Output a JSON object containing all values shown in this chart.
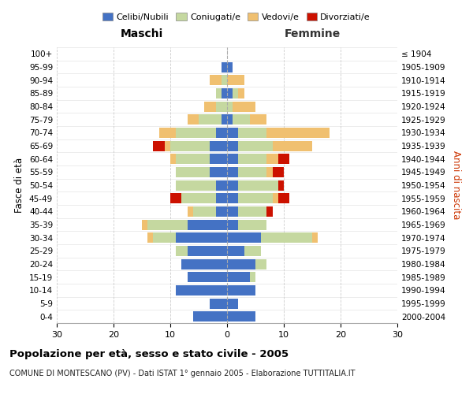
{
  "age_groups": [
    "0-4",
    "5-9",
    "10-14",
    "15-19",
    "20-24",
    "25-29",
    "30-34",
    "35-39",
    "40-44",
    "45-49",
    "50-54",
    "55-59",
    "60-64",
    "65-69",
    "70-74",
    "75-79",
    "80-84",
    "85-89",
    "90-94",
    "95-99",
    "100+"
  ],
  "birth_years": [
    "2000-2004",
    "1995-1999",
    "1990-1994",
    "1985-1989",
    "1980-1984",
    "1975-1979",
    "1970-1974",
    "1965-1969",
    "1960-1964",
    "1955-1959",
    "1950-1954",
    "1945-1949",
    "1940-1944",
    "1935-1939",
    "1930-1934",
    "1925-1929",
    "1920-1924",
    "1915-1919",
    "1910-1914",
    "1905-1909",
    "≤ 1904"
  ],
  "maschi": {
    "celibi": [
      6,
      3,
      9,
      7,
      8,
      7,
      9,
      7,
      2,
      2,
      2,
      3,
      3,
      3,
      2,
      1,
      0,
      1,
      0,
      1,
      0
    ],
    "coniugati": [
      0,
      0,
      0,
      0,
      0,
      2,
      4,
      7,
      4,
      6,
      7,
      6,
      6,
      7,
      7,
      4,
      2,
      1,
      1,
      0,
      0
    ],
    "vedovi": [
      0,
      0,
      0,
      0,
      0,
      0,
      1,
      1,
      1,
      0,
      0,
      0,
      1,
      1,
      3,
      2,
      2,
      0,
      2,
      0,
      0
    ],
    "divorziati": [
      0,
      0,
      0,
      0,
      0,
      0,
      0,
      0,
      0,
      2,
      0,
      0,
      0,
      2,
      0,
      0,
      0,
      0,
      0,
      0,
      0
    ]
  },
  "femmine": {
    "nubili": [
      5,
      2,
      5,
      4,
      5,
      3,
      6,
      2,
      2,
      2,
      2,
      2,
      2,
      2,
      2,
      1,
      0,
      1,
      0,
      1,
      0
    ],
    "coniugate": [
      0,
      0,
      0,
      1,
      2,
      3,
      9,
      5,
      5,
      6,
      7,
      5,
      5,
      6,
      5,
      3,
      1,
      1,
      0,
      0,
      0
    ],
    "vedove": [
      0,
      0,
      0,
      0,
      0,
      0,
      1,
      0,
      0,
      1,
      0,
      1,
      2,
      7,
      11,
      3,
      4,
      1,
      3,
      0,
      0
    ],
    "divorziate": [
      0,
      0,
      0,
      0,
      0,
      0,
      0,
      0,
      1,
      2,
      1,
      2,
      2,
      0,
      0,
      0,
      0,
      0,
      0,
      0,
      0
    ]
  },
  "colors": {
    "celibi_nubili": "#4472C4",
    "coniugati": "#C5D8A0",
    "vedovi": "#F0C070",
    "divorziati": "#CC1100"
  },
  "xlim": 30,
  "title": "Popolazione per età, sesso e stato civile - 2005",
  "subtitle": "COMUNE DI MONTESCANO (PV) - Dati ISTAT 1° gennaio 2005 - Elaborazione TUTTITALIA.IT",
  "ylabel_left": "Fasce di età",
  "ylabel_right": "Anni di nascita",
  "xlabel_left": "Maschi",
  "xlabel_right": "Femmine"
}
